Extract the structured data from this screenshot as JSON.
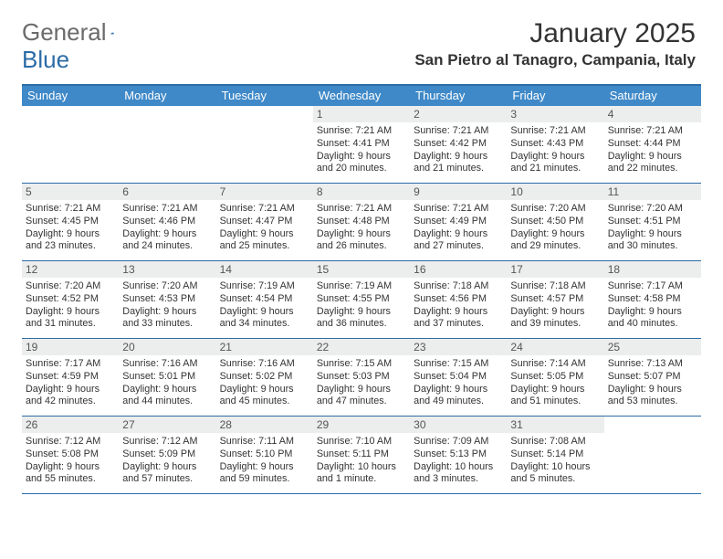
{
  "logo": {
    "text1": "General",
    "text2": "Blue"
  },
  "title": "January 2025",
  "location": "San Pietro al Tanagro, Campania, Italy",
  "colors": {
    "header_bar": "#3f89c8",
    "border": "#2c6ca6",
    "daynum_bg": "#eceded",
    "logo_gray": "#6b6b6b",
    "logo_blue": "#2c6ca6"
  },
  "weekdays": [
    "Sunday",
    "Monday",
    "Tuesday",
    "Wednesday",
    "Thursday",
    "Friday",
    "Saturday"
  ],
  "weeks": [
    [
      null,
      null,
      null,
      {
        "n": "1",
        "sr": "7:21 AM",
        "ss": "4:41 PM",
        "dl": "9 hours and 20 minutes."
      },
      {
        "n": "2",
        "sr": "7:21 AM",
        "ss": "4:42 PM",
        "dl": "9 hours and 21 minutes."
      },
      {
        "n": "3",
        "sr": "7:21 AM",
        "ss": "4:43 PM",
        "dl": "9 hours and 21 minutes."
      },
      {
        "n": "4",
        "sr": "7:21 AM",
        "ss": "4:44 PM",
        "dl": "9 hours and 22 minutes."
      }
    ],
    [
      {
        "n": "5",
        "sr": "7:21 AM",
        "ss": "4:45 PM",
        "dl": "9 hours and 23 minutes."
      },
      {
        "n": "6",
        "sr": "7:21 AM",
        "ss": "4:46 PM",
        "dl": "9 hours and 24 minutes."
      },
      {
        "n": "7",
        "sr": "7:21 AM",
        "ss": "4:47 PM",
        "dl": "9 hours and 25 minutes."
      },
      {
        "n": "8",
        "sr": "7:21 AM",
        "ss": "4:48 PM",
        "dl": "9 hours and 26 minutes."
      },
      {
        "n": "9",
        "sr": "7:21 AM",
        "ss": "4:49 PM",
        "dl": "9 hours and 27 minutes."
      },
      {
        "n": "10",
        "sr": "7:20 AM",
        "ss": "4:50 PM",
        "dl": "9 hours and 29 minutes."
      },
      {
        "n": "11",
        "sr": "7:20 AM",
        "ss": "4:51 PM",
        "dl": "9 hours and 30 minutes."
      }
    ],
    [
      {
        "n": "12",
        "sr": "7:20 AM",
        "ss": "4:52 PM",
        "dl": "9 hours and 31 minutes."
      },
      {
        "n": "13",
        "sr": "7:20 AM",
        "ss": "4:53 PM",
        "dl": "9 hours and 33 minutes."
      },
      {
        "n": "14",
        "sr": "7:19 AM",
        "ss": "4:54 PM",
        "dl": "9 hours and 34 minutes."
      },
      {
        "n": "15",
        "sr": "7:19 AM",
        "ss": "4:55 PM",
        "dl": "9 hours and 36 minutes."
      },
      {
        "n": "16",
        "sr": "7:18 AM",
        "ss": "4:56 PM",
        "dl": "9 hours and 37 minutes."
      },
      {
        "n": "17",
        "sr": "7:18 AM",
        "ss": "4:57 PM",
        "dl": "9 hours and 39 minutes."
      },
      {
        "n": "18",
        "sr": "7:17 AM",
        "ss": "4:58 PM",
        "dl": "9 hours and 40 minutes."
      }
    ],
    [
      {
        "n": "19",
        "sr": "7:17 AM",
        "ss": "4:59 PM",
        "dl": "9 hours and 42 minutes."
      },
      {
        "n": "20",
        "sr": "7:16 AM",
        "ss": "5:01 PM",
        "dl": "9 hours and 44 minutes."
      },
      {
        "n": "21",
        "sr": "7:16 AM",
        "ss": "5:02 PM",
        "dl": "9 hours and 45 minutes."
      },
      {
        "n": "22",
        "sr": "7:15 AM",
        "ss": "5:03 PM",
        "dl": "9 hours and 47 minutes."
      },
      {
        "n": "23",
        "sr": "7:15 AM",
        "ss": "5:04 PM",
        "dl": "9 hours and 49 minutes."
      },
      {
        "n": "24",
        "sr": "7:14 AM",
        "ss": "5:05 PM",
        "dl": "9 hours and 51 minutes."
      },
      {
        "n": "25",
        "sr": "7:13 AM",
        "ss": "5:07 PM",
        "dl": "9 hours and 53 minutes."
      }
    ],
    [
      {
        "n": "26",
        "sr": "7:12 AM",
        "ss": "5:08 PM",
        "dl": "9 hours and 55 minutes."
      },
      {
        "n": "27",
        "sr": "7:12 AM",
        "ss": "5:09 PM",
        "dl": "9 hours and 57 minutes."
      },
      {
        "n": "28",
        "sr": "7:11 AM",
        "ss": "5:10 PM",
        "dl": "9 hours and 59 minutes."
      },
      {
        "n": "29",
        "sr": "7:10 AM",
        "ss": "5:11 PM",
        "dl": "10 hours and 1 minute."
      },
      {
        "n": "30",
        "sr": "7:09 AM",
        "ss": "5:13 PM",
        "dl": "10 hours and 3 minutes."
      },
      {
        "n": "31",
        "sr": "7:08 AM",
        "ss": "5:14 PM",
        "dl": "10 hours and 5 minutes."
      },
      null
    ]
  ],
  "labels": {
    "sunrise": "Sunrise: ",
    "sunset": "Sunset: ",
    "daylight": "Daylight: "
  }
}
